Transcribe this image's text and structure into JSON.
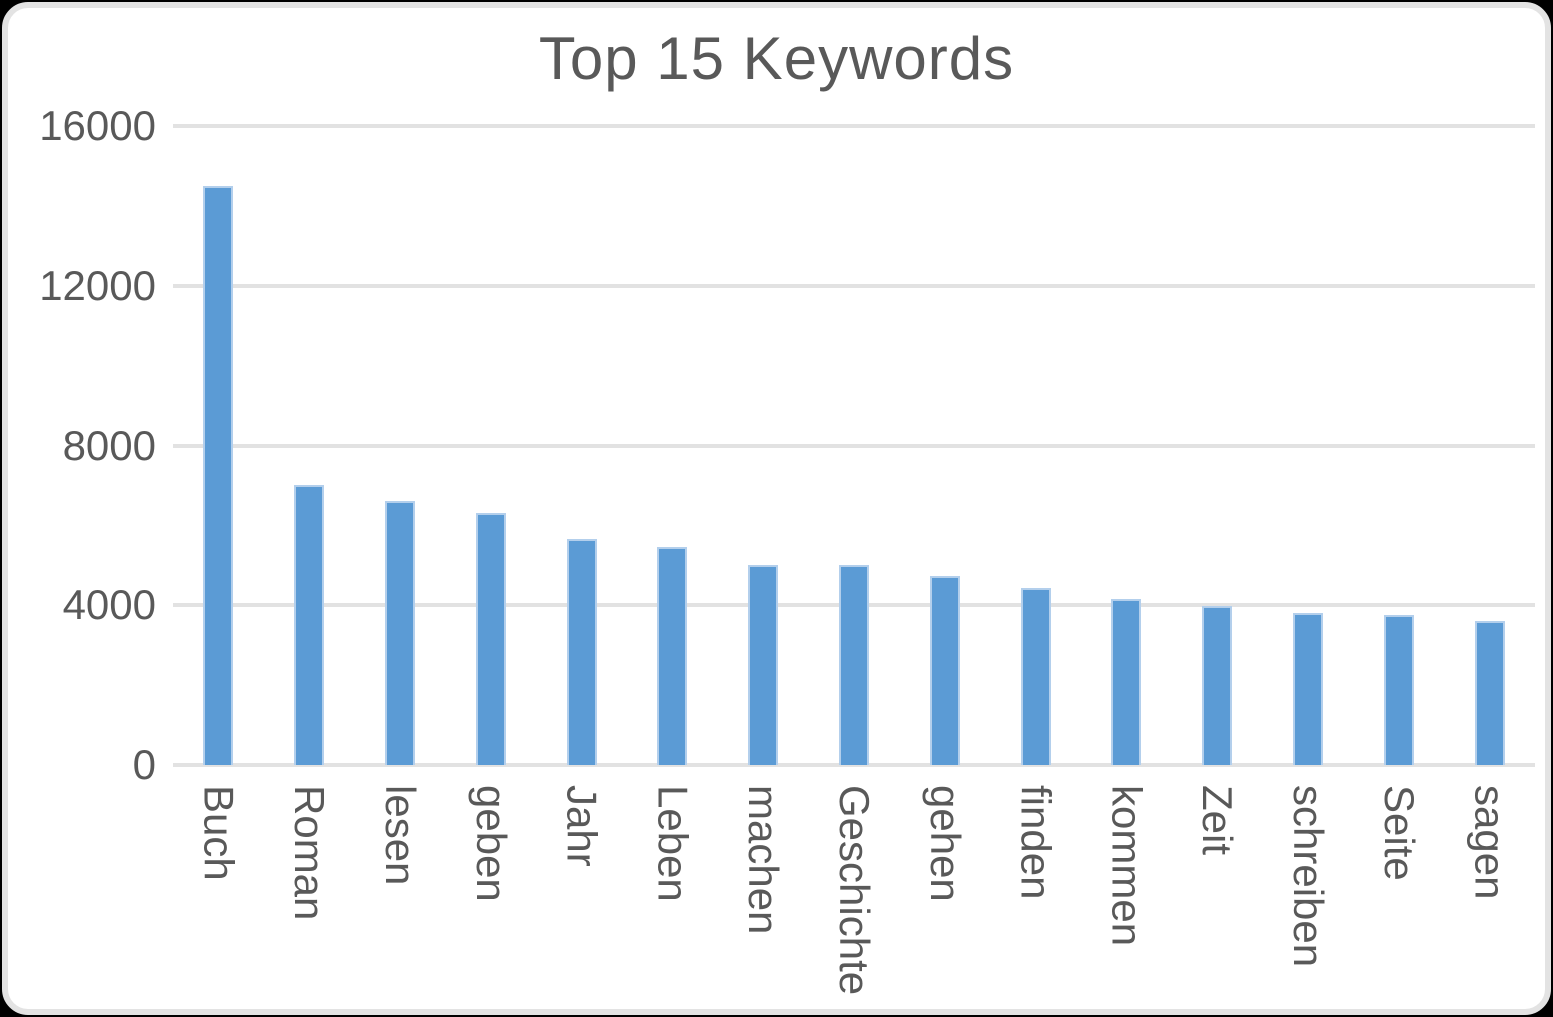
{
  "window": {
    "background_color": "#000000",
    "card_background": "#ffffff",
    "card_border_color": "#e3e3e3"
  },
  "chart_data": {
    "type": "bar",
    "title": "Top 15 Keywords",
    "xlabel": "",
    "ylabel": "",
    "categories": [
      "Buch",
      "Roman",
      "lesen",
      "geben",
      "Jahr",
      "Leben",
      "machen",
      "Geschichte",
      "gehen",
      "finden",
      "kommen",
      "Zeit",
      "schreiben",
      "Seite",
      "sagen"
    ],
    "values": [
      14500,
      7000,
      6600,
      6300,
      5650,
      5450,
      5000,
      5020,
      4730,
      4440,
      4150,
      3970,
      3800,
      3750,
      3600
    ],
    "ylim": [
      0,
      16000
    ],
    "yticks": [
      0,
      4000,
      8000,
      12000,
      16000
    ],
    "grid": "horizontal",
    "legend": "none",
    "bar_color": "#5b9bd5",
    "bar_border_color": "#b3cfec",
    "gridline_color": "#e2e2e2",
    "text_color": "#595959",
    "x_label_rotation": "90deg-clockwise"
  }
}
